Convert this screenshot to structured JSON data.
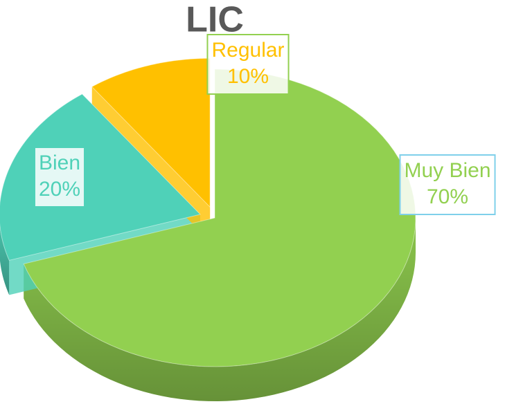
{
  "chart_data": {
    "type": "pie",
    "title": "LIC",
    "categories": [
      "Muy Bien",
      "Bien",
      "Regular"
    ],
    "values": [
      70,
      20,
      10
    ],
    "value_labels": [
      "70%",
      "20%",
      "10%"
    ],
    "colors": [
      "#92d050",
      "#4fd1b8",
      "#ffc000"
    ]
  }
}
